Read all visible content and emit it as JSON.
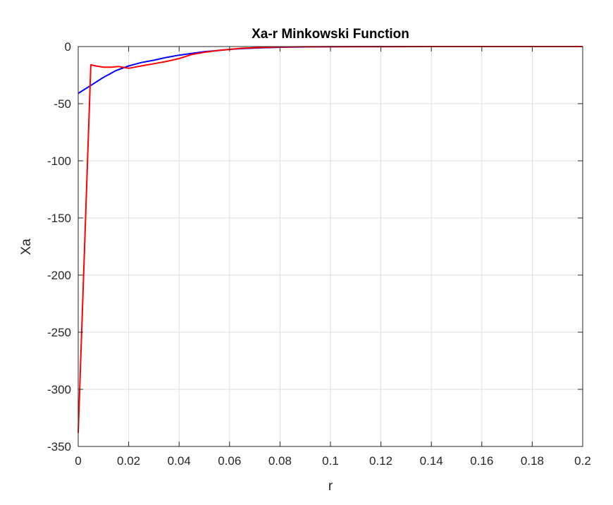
{
  "chart_data": {
    "type": "line",
    "title": "Xa-r Minkowski Function",
    "xlabel": "r",
    "ylabel": "Xa",
    "xlim": [
      0,
      0.2
    ],
    "ylim": [
      -350,
      0
    ],
    "xticks": [
      0,
      0.02,
      0.04,
      0.06,
      0.08,
      0.1,
      0.12,
      0.14,
      0.16,
      0.18,
      0.2
    ],
    "yticks": [
      0,
      -50,
      -100,
      -150,
      -200,
      -250,
      -300,
      -350
    ],
    "xtick_labels": [
      "0",
      "0.02",
      "0.04",
      "0.06",
      "0.08",
      "0.1",
      "0.12",
      "0.14",
      "0.16",
      "0.18",
      "0.2"
    ],
    "ytick_labels": [
      "0",
      "-50",
      "-100",
      "-150",
      "-200",
      "-250",
      "-300",
      "-350"
    ],
    "grid": true,
    "legend": null,
    "series": [
      {
        "color": "#0000ff",
        "x": [
          0,
          0.005,
          0.01,
          0.015,
          0.02,
          0.025,
          0.03,
          0.035,
          0.04,
          0.045,
          0.05,
          0.055,
          0.06,
          0.065,
          0.07,
          0.075,
          0.08,
          0.09,
          0.1,
          0.12,
          0.14,
          0.16,
          0.18,
          0.2
        ],
        "y": [
          -41,
          -34,
          -27,
          -21,
          -17,
          -14,
          -12,
          -9.5,
          -7.5,
          -6,
          -4.5,
          -3.5,
          -2.5,
          -1.8,
          -1.3,
          -0.9,
          -0.6,
          -0.3,
          -0.15,
          -0.05,
          0,
          0,
          0,
          0
        ]
      },
      {
        "color": "#ff0000",
        "x": [
          0,
          0.005,
          0.007,
          0.01,
          0.013,
          0.016,
          0.02,
          0.025,
          0.03,
          0.035,
          0.04,
          0.045,
          0.05,
          0.055,
          0.06,
          0.065,
          0.07,
          0.075,
          0.08,
          0.09,
          0.1,
          0.12,
          0.14,
          0.16,
          0.18,
          0.2
        ],
        "y": [
          -338,
          -16,
          -17,
          -18,
          -18,
          -17.5,
          -19,
          -17,
          -15,
          -13,
          -10.5,
          -7,
          -5,
          -3.5,
          -2.5,
          -1.5,
          -1,
          -0.7,
          -0.4,
          -0.2,
          -0.1,
          -0.05,
          0,
          0,
          0,
          0
        ]
      }
    ]
  }
}
